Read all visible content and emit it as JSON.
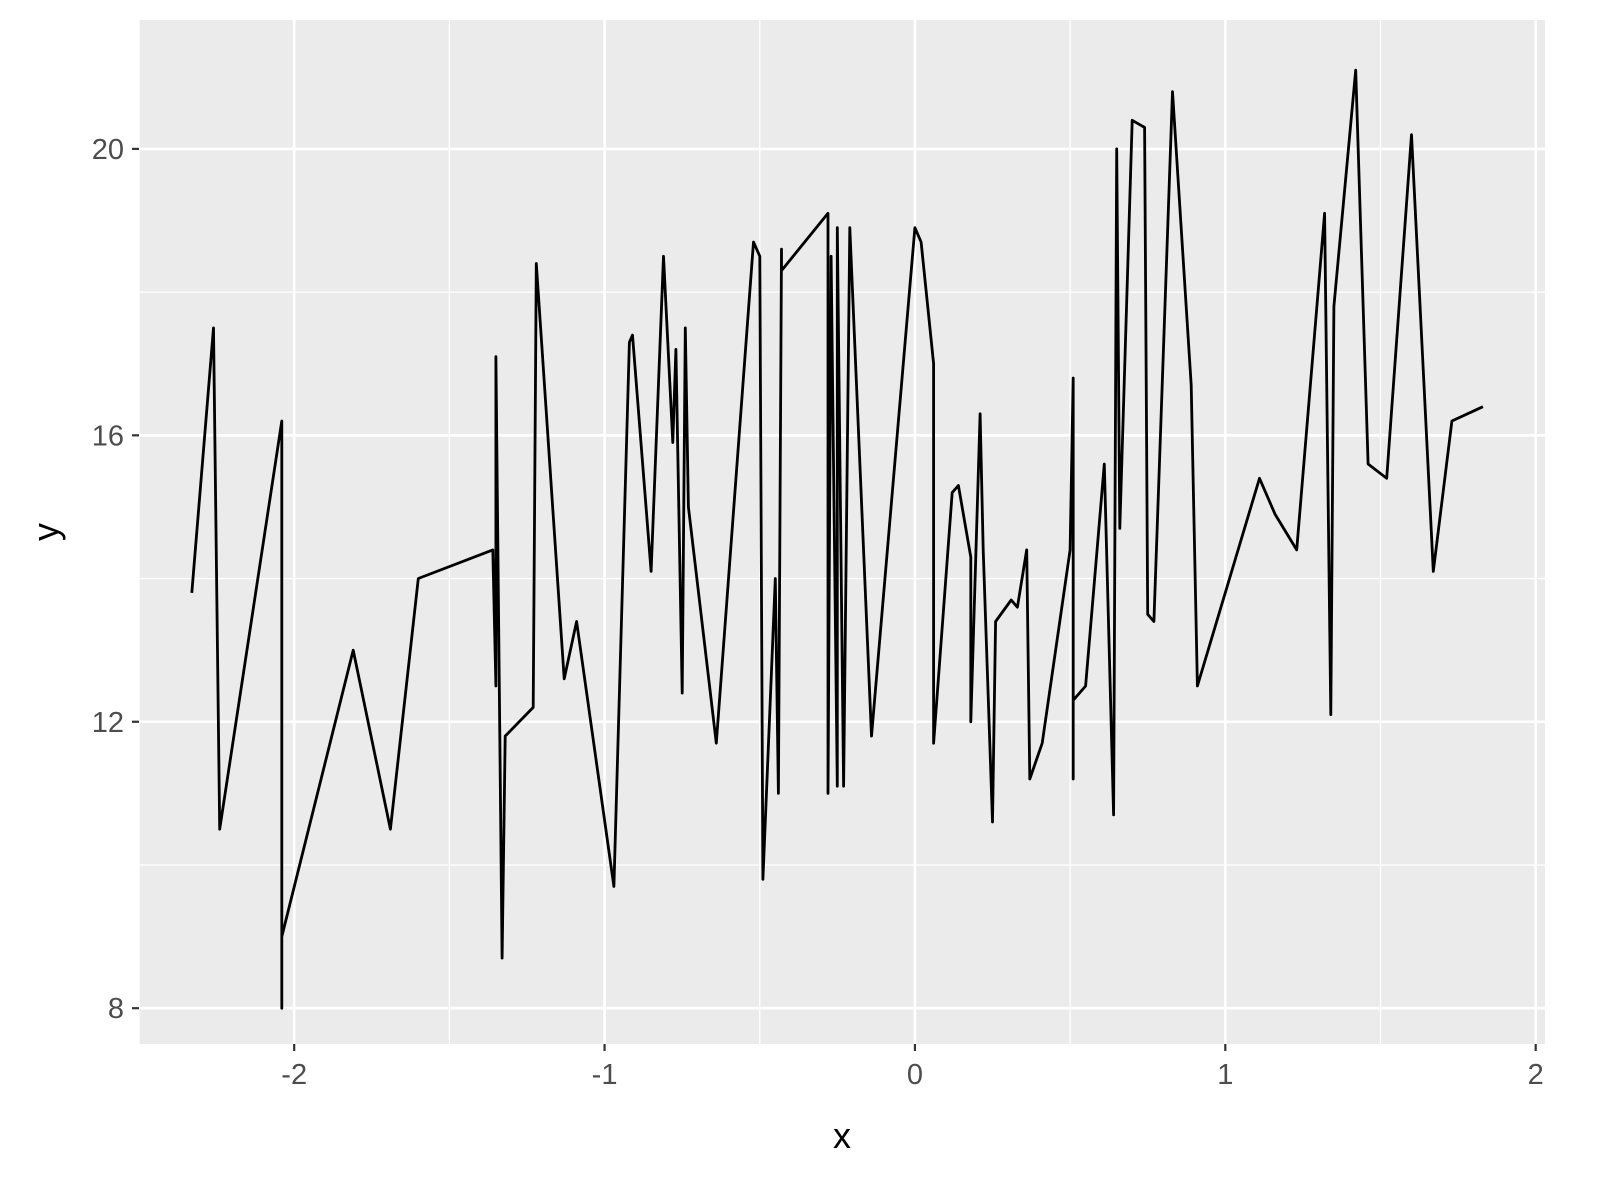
{
  "chart_data": {
    "type": "line",
    "title": "",
    "xlabel": "x",
    "ylabel": "y",
    "xlim": [
      -2.5,
      2.03
    ],
    "ylim": [
      7.5,
      21.8
    ],
    "x_ticks": [
      -2,
      -1,
      0,
      1,
      2
    ],
    "x_tick_labels": [
      "-2",
      "-1",
      "0",
      "1",
      "2"
    ],
    "y_ticks": [
      8,
      12,
      16,
      20
    ],
    "y_tick_labels": [
      "8",
      "12",
      "16",
      "20"
    ],
    "grid": true,
    "legend": "none",
    "series": [
      {
        "line_color": "#000000",
        "points": [
          [
            -2.33,
            13.8
          ],
          [
            -2.26,
            17.5
          ],
          [
            -2.24,
            10.5
          ],
          [
            -2.04,
            16.2
          ],
          [
            -2.04,
            8.0
          ],
          [
            -2.04,
            9.0
          ],
          [
            -1.81,
            13.0
          ],
          [
            -1.69,
            10.5
          ],
          [
            -1.6,
            14.0
          ],
          [
            -1.36,
            14.4
          ],
          [
            -1.35,
            12.5
          ],
          [
            -1.35,
            17.1
          ],
          [
            -1.33,
            8.7
          ],
          [
            -1.32,
            11.8
          ],
          [
            -1.23,
            12.2
          ],
          [
            -1.22,
            18.4
          ],
          [
            -1.13,
            12.6
          ],
          [
            -1.09,
            13.4
          ],
          [
            -0.97,
            9.7
          ],
          [
            -0.92,
            17.3
          ],
          [
            -0.91,
            17.4
          ],
          [
            -0.85,
            14.1
          ],
          [
            -0.81,
            18.5
          ],
          [
            -0.78,
            15.9
          ],
          [
            -0.77,
            17.2
          ],
          [
            -0.75,
            12.4
          ],
          [
            -0.74,
            17.5
          ],
          [
            -0.73,
            15.0
          ],
          [
            -0.64,
            11.7
          ],
          [
            -0.52,
            18.7
          ],
          [
            -0.5,
            18.5
          ],
          [
            -0.49,
            9.8
          ],
          [
            -0.45,
            14.0
          ],
          [
            -0.44,
            11.0
          ],
          [
            -0.43,
            18.6
          ],
          [
            -0.43,
            18.3
          ],
          [
            -0.28,
            19.1
          ],
          [
            -0.28,
            11.0
          ],
          [
            -0.27,
            18.5
          ],
          [
            -0.25,
            11.1
          ],
          [
            -0.25,
            18.9
          ],
          [
            -0.23,
            11.1
          ],
          [
            -0.21,
            18.9
          ],
          [
            -0.14,
            11.8
          ],
          [
            0.0,
            18.9
          ],
          [
            0.02,
            18.7
          ],
          [
            0.06,
            17.0
          ],
          [
            0.06,
            11.7
          ],
          [
            0.12,
            15.2
          ],
          [
            0.14,
            15.3
          ],
          [
            0.18,
            14.3
          ],
          [
            0.18,
            12.0
          ],
          [
            0.21,
            16.3
          ],
          [
            0.22,
            14.4
          ],
          [
            0.25,
            10.6
          ],
          [
            0.26,
            13.4
          ],
          [
            0.31,
            13.7
          ],
          [
            0.33,
            13.6
          ],
          [
            0.36,
            14.4
          ],
          [
            0.37,
            11.2
          ],
          [
            0.41,
            11.7
          ],
          [
            0.5,
            14.4
          ],
          [
            0.51,
            16.8
          ],
          [
            0.51,
            11.2
          ],
          [
            0.51,
            12.3
          ],
          [
            0.55,
            12.5
          ],
          [
            0.61,
            15.6
          ],
          [
            0.64,
            10.7
          ],
          [
            0.65,
            20.0
          ],
          [
            0.66,
            14.7
          ],
          [
            0.7,
            20.4
          ],
          [
            0.74,
            20.3
          ],
          [
            0.75,
            13.5
          ],
          [
            0.77,
            13.4
          ],
          [
            0.83,
            20.8
          ],
          [
            0.89,
            16.7
          ],
          [
            0.91,
            12.5
          ],
          [
            1.11,
            15.4
          ],
          [
            1.16,
            14.9
          ],
          [
            1.23,
            14.4
          ],
          [
            1.32,
            19.1
          ],
          [
            1.34,
            12.1
          ],
          [
            1.35,
            17.8
          ],
          [
            1.42,
            21.1
          ],
          [
            1.46,
            15.6
          ],
          [
            1.52,
            15.4
          ],
          [
            1.6,
            20.2
          ],
          [
            1.67,
            14.1
          ],
          [
            1.73,
            16.2
          ],
          [
            1.83,
            16.4
          ]
        ]
      }
    ]
  }
}
